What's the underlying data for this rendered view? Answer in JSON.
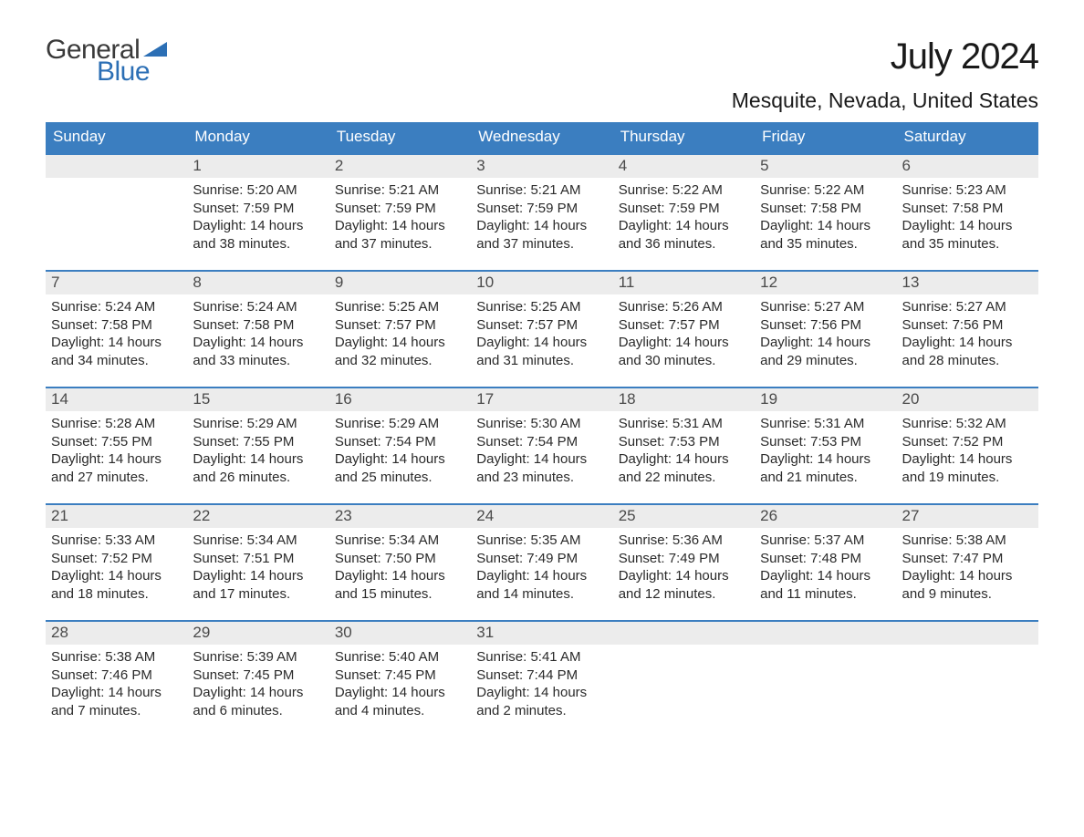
{
  "brand": {
    "text_general": "General",
    "text_blue": "Blue",
    "flag_color": "#2c6fb5",
    "general_color": "#3a3a3a"
  },
  "header": {
    "month_title": "July 2024",
    "location": "Mesquite, Nevada, United States"
  },
  "colors": {
    "header_bg": "#3b7ec0",
    "header_text": "#ffffff",
    "daybar_bg": "#ececec",
    "row_border": "#3b7ec0",
    "body_text": "#2a2a2a",
    "page_bg": "#ffffff"
  },
  "weekdays": [
    "Sunday",
    "Monday",
    "Tuesday",
    "Wednesday",
    "Thursday",
    "Friday",
    "Saturday"
  ],
  "weeks": [
    [
      {
        "day": "",
        "lines": []
      },
      {
        "day": "1",
        "lines": [
          "Sunrise: 5:20 AM",
          "Sunset: 7:59 PM",
          "Daylight: 14 hours",
          "and 38 minutes."
        ]
      },
      {
        "day": "2",
        "lines": [
          "Sunrise: 5:21 AM",
          "Sunset: 7:59 PM",
          "Daylight: 14 hours",
          "and 37 minutes."
        ]
      },
      {
        "day": "3",
        "lines": [
          "Sunrise: 5:21 AM",
          "Sunset: 7:59 PM",
          "Daylight: 14 hours",
          "and 37 minutes."
        ]
      },
      {
        "day": "4",
        "lines": [
          "Sunrise: 5:22 AM",
          "Sunset: 7:59 PM",
          "Daylight: 14 hours",
          "and 36 minutes."
        ]
      },
      {
        "day": "5",
        "lines": [
          "Sunrise: 5:22 AM",
          "Sunset: 7:58 PM",
          "Daylight: 14 hours",
          "and 35 minutes."
        ]
      },
      {
        "day": "6",
        "lines": [
          "Sunrise: 5:23 AM",
          "Sunset: 7:58 PM",
          "Daylight: 14 hours",
          "and 35 minutes."
        ]
      }
    ],
    [
      {
        "day": "7",
        "lines": [
          "Sunrise: 5:24 AM",
          "Sunset: 7:58 PM",
          "Daylight: 14 hours",
          "and 34 minutes."
        ]
      },
      {
        "day": "8",
        "lines": [
          "Sunrise: 5:24 AM",
          "Sunset: 7:58 PM",
          "Daylight: 14 hours",
          "and 33 minutes."
        ]
      },
      {
        "day": "9",
        "lines": [
          "Sunrise: 5:25 AM",
          "Sunset: 7:57 PM",
          "Daylight: 14 hours",
          "and 32 minutes."
        ]
      },
      {
        "day": "10",
        "lines": [
          "Sunrise: 5:25 AM",
          "Sunset: 7:57 PM",
          "Daylight: 14 hours",
          "and 31 minutes."
        ]
      },
      {
        "day": "11",
        "lines": [
          "Sunrise: 5:26 AM",
          "Sunset: 7:57 PM",
          "Daylight: 14 hours",
          "and 30 minutes."
        ]
      },
      {
        "day": "12",
        "lines": [
          "Sunrise: 5:27 AM",
          "Sunset: 7:56 PM",
          "Daylight: 14 hours",
          "and 29 minutes."
        ]
      },
      {
        "day": "13",
        "lines": [
          "Sunrise: 5:27 AM",
          "Sunset: 7:56 PM",
          "Daylight: 14 hours",
          "and 28 minutes."
        ]
      }
    ],
    [
      {
        "day": "14",
        "lines": [
          "Sunrise: 5:28 AM",
          "Sunset: 7:55 PM",
          "Daylight: 14 hours",
          "and 27 minutes."
        ]
      },
      {
        "day": "15",
        "lines": [
          "Sunrise: 5:29 AM",
          "Sunset: 7:55 PM",
          "Daylight: 14 hours",
          "and 26 minutes."
        ]
      },
      {
        "day": "16",
        "lines": [
          "Sunrise: 5:29 AM",
          "Sunset: 7:54 PM",
          "Daylight: 14 hours",
          "and 25 minutes."
        ]
      },
      {
        "day": "17",
        "lines": [
          "Sunrise: 5:30 AM",
          "Sunset: 7:54 PM",
          "Daylight: 14 hours",
          "and 23 minutes."
        ]
      },
      {
        "day": "18",
        "lines": [
          "Sunrise: 5:31 AM",
          "Sunset: 7:53 PM",
          "Daylight: 14 hours",
          "and 22 minutes."
        ]
      },
      {
        "day": "19",
        "lines": [
          "Sunrise: 5:31 AM",
          "Sunset: 7:53 PM",
          "Daylight: 14 hours",
          "and 21 minutes."
        ]
      },
      {
        "day": "20",
        "lines": [
          "Sunrise: 5:32 AM",
          "Sunset: 7:52 PM",
          "Daylight: 14 hours",
          "and 19 minutes."
        ]
      }
    ],
    [
      {
        "day": "21",
        "lines": [
          "Sunrise: 5:33 AM",
          "Sunset: 7:52 PM",
          "Daylight: 14 hours",
          "and 18 minutes."
        ]
      },
      {
        "day": "22",
        "lines": [
          "Sunrise: 5:34 AM",
          "Sunset: 7:51 PM",
          "Daylight: 14 hours",
          "and 17 minutes."
        ]
      },
      {
        "day": "23",
        "lines": [
          "Sunrise: 5:34 AM",
          "Sunset: 7:50 PM",
          "Daylight: 14 hours",
          "and 15 minutes."
        ]
      },
      {
        "day": "24",
        "lines": [
          "Sunrise: 5:35 AM",
          "Sunset: 7:49 PM",
          "Daylight: 14 hours",
          "and 14 minutes."
        ]
      },
      {
        "day": "25",
        "lines": [
          "Sunrise: 5:36 AM",
          "Sunset: 7:49 PM",
          "Daylight: 14 hours",
          "and 12 minutes."
        ]
      },
      {
        "day": "26",
        "lines": [
          "Sunrise: 5:37 AM",
          "Sunset: 7:48 PM",
          "Daylight: 14 hours",
          "and 11 minutes."
        ]
      },
      {
        "day": "27",
        "lines": [
          "Sunrise: 5:38 AM",
          "Sunset: 7:47 PM",
          "Daylight: 14 hours",
          "and 9 minutes."
        ]
      }
    ],
    [
      {
        "day": "28",
        "lines": [
          "Sunrise: 5:38 AM",
          "Sunset: 7:46 PM",
          "Daylight: 14 hours",
          "and 7 minutes."
        ]
      },
      {
        "day": "29",
        "lines": [
          "Sunrise: 5:39 AM",
          "Sunset: 7:45 PM",
          "Daylight: 14 hours",
          "and 6 minutes."
        ]
      },
      {
        "day": "30",
        "lines": [
          "Sunrise: 5:40 AM",
          "Sunset: 7:45 PM",
          "Daylight: 14 hours",
          "and 4 minutes."
        ]
      },
      {
        "day": "31",
        "lines": [
          "Sunrise: 5:41 AM",
          "Sunset: 7:44 PM",
          "Daylight: 14 hours",
          "and 2 minutes."
        ]
      },
      {
        "day": "",
        "lines": []
      },
      {
        "day": "",
        "lines": []
      },
      {
        "day": "",
        "lines": []
      }
    ]
  ]
}
